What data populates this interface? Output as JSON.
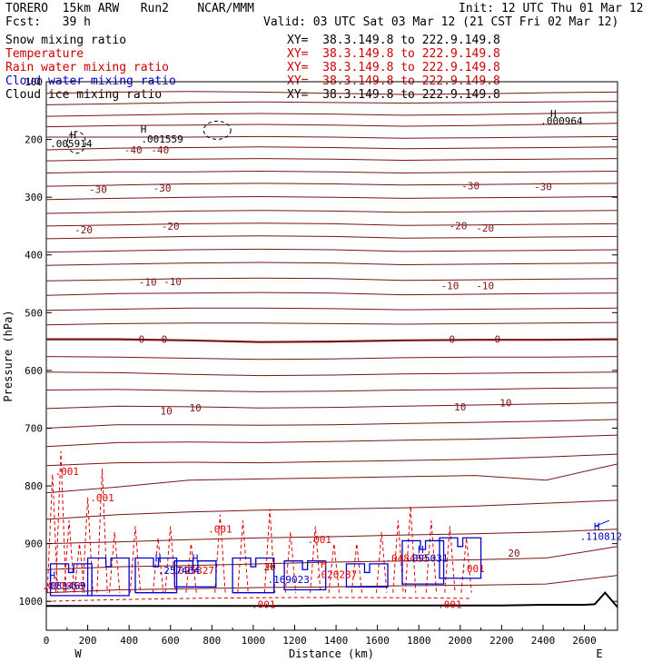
{
  "header": {
    "line1_left": "TORERO  15km ARW   Run2    NCAR/MMM",
    "init": "Init: 12 UTC Thu 01 Mar 12",
    "fcst": "Fcst:   39 h",
    "valid": "Valid: 03 UTC Sat 03 Mar 12 (21 CST Fri 02 Mar 12)"
  },
  "legend": [
    {
      "name": "Snow mixing ratio",
      "xy": "XY=  38.3.149.8 to 222.9.149.8",
      "color": "#000000"
    },
    {
      "name": "Temperature",
      "xy": "XY=  38.3.149.8 to 222.9.149.8",
      "color": "#cc0000"
    },
    {
      "name": "Rain water mixing ratio",
      "xy": "XY=  38.3.149.8 to 222.9.149.8",
      "color": "#cc0000"
    },
    {
      "name": "Cloud water mixing ratio",
      "xy": "XY=  38.3.149.8 to 222.9.149.8",
      "color": "#0000cc"
    },
    {
      "name": "Cloud ice mixing ratio",
      "xy": "XY=  38.3.149.8 to 222.9.149.8",
      "color": "#000000"
    }
  ],
  "colors": {
    "temperature": "#7a1414",
    "temperature_zero": "#7a1414",
    "rain": "#dd0000",
    "cloud_water": "#0000cc",
    "snow": "#000000",
    "terrain": "#000000"
  },
  "chart_data": {
    "type": "contour",
    "xlabel": "Distance (km)",
    "ylabel": "Pressure (hPa)",
    "xlim": [
      0,
      2760
    ],
    "ylim": [
      1050,
      100
    ],
    "x_ticks": [
      0,
      200,
      400,
      600,
      800,
      1000,
      1200,
      1400,
      1600,
      1800,
      2000,
      2200,
      2400,
      2600
    ],
    "y_ticks": [
      100,
      200,
      300,
      400,
      500,
      600,
      700,
      800,
      900,
      1000
    ],
    "x_end_labels": [
      "W",
      "E"
    ],
    "temperature_isotherms": [
      {
        "p": [
          120,
          118,
          117,
          118,
          120,
          122,
          121,
          119,
          118
        ],
        "label": ""
      },
      {
        "p": [
          140,
          138,
          136,
          135,
          136,
          137,
          136,
          135,
          134
        ],
        "label": ""
      },
      {
        "p": [
          160,
          158,
          156,
          155,
          156,
          158,
          157,
          155,
          153
        ],
        "label": ""
      },
      {
        "p": [
          178,
          176,
          175,
          174,
          175,
          177,
          176,
          174,
          172
        ],
        "label": ""
      },
      {
        "p": [
          196,
          196,
          196,
          195,
          196,
          198,
          197,
          196,
          195
        ],
        "label": ""
      },
      {
        "p": [
          218,
          215,
          214,
          213,
          214,
          216,
          215,
          214,
          213
        ],
        "label": "-40"
      },
      {
        "p": [
          237,
          235,
          234,
          233,
          234,
          236,
          235,
          234,
          233
        ],
        "label": ""
      },
      {
        "p": [
          258,
          256,
          256,
          255,
          256,
          258,
          257,
          256,
          255
        ],
        "label": ""
      },
      {
        "p": [
          281,
          279,
          277,
          276,
          277,
          279,
          278,
          277,
          276
        ],
        "label": "-30"
      },
      {
        "p": [
          304,
          302,
          300,
          299,
          300,
          302,
          301,
          300,
          299
        ],
        "label": ""
      },
      {
        "p": [
          328,
          326,
          324,
          323,
          324,
          326,
          325,
          324,
          323
        ],
        "label": ""
      },
      {
        "p": [
          350,
          348,
          346,
          345,
          346,
          349,
          348,
          347,
          346
        ],
        "label": "-20"
      },
      {
        "p": [
          372,
          370,
          368,
          367,
          368,
          371,
          370,
          369,
          368
        ],
        "label": ""
      },
      {
        "p": [
          395,
          393,
          391,
          390,
          391,
          394,
          393,
          392,
          391
        ],
        "label": ""
      },
      {
        "p": [
          418,
          416,
          414,
          413,
          414,
          417,
          416,
          415,
          414
        ],
        "label": ""
      },
      {
        "p": [
          445,
          443,
          441,
          440,
          441,
          444,
          443,
          442,
          441
        ],
        "label": "-10"
      },
      {
        "p": [
          470,
          467,
          466,
          465,
          466,
          469,
          468,
          467,
          466
        ],
        "label": ""
      },
      {
        "p": [
          496,
          494,
          492,
          492,
          493,
          495,
          494,
          493,
          492
        ],
        "label": ""
      },
      {
        "p": [
          521,
          519,
          518,
          518,
          519,
          520,
          519,
          518,
          517
        ],
        "label": ""
      },
      {
        "p": [
          546,
          546,
          548,
          551,
          550,
          548,
          547,
          547,
          546
        ],
        "label": "0",
        "bold": true
      },
      {
        "p": [
          576,
          577,
          579,
          581,
          580,
          578,
          577,
          577,
          576
        ],
        "label": ""
      },
      {
        "p": [
          603,
          604,
          607,
          609,
          608,
          606,
          605,
          604,
          603
        ],
        "label": ""
      },
      {
        "p": [
          634,
          633,
          635,
          637,
          636,
          634,
          633,
          631,
          630
        ],
        "label": ""
      },
      {
        "p": [
          666,
          662,
          663,
          665,
          664,
          662,
          660,
          658,
          656
        ],
        "label": "10"
      },
      {
        "p": [
          700,
          694,
          694,
          695,
          694,
          692,
          690,
          688,
          685
        ],
        "label": ""
      },
      {
        "p": [
          732,
          725,
          724,
          725,
          723,
          721,
          719,
          716,
          712
        ],
        "label": ""
      },
      {
        "p": [
          765,
          760,
          759,
          760,
          758,
          756,
          754,
          750,
          745
        ],
        "label": ""
      },
      {
        "p": [
          812,
          802,
          790,
          788,
          786,
          784,
          782,
          790,
          762
        ],
        "label": ""
      },
      {
        "p": [
          858,
          850,
          845,
          842,
          840,
          838,
          835,
          830,
          825
        ],
        "label": ""
      },
      {
        "p": [
          900,
          897,
          893,
          890,
          888,
          885,
          883,
          880,
          875
        ],
        "label": ""
      },
      {
        "p": [
          945,
          940,
          938,
          935,
          932,
          930,
          928,
          925,
          905
        ],
        "label": "20"
      },
      {
        "p": [
          985,
          980,
          978,
          976,
          975,
          973,
          972,
          970,
          955
        ],
        "label": ""
      }
    ],
    "isotherm_x": [
      0,
      345,
      690,
      1035,
      1380,
      1725,
      2070,
      2415,
      2760
    ],
    "temperature_labels": [
      {
        "x": 420,
        "p": 218,
        "text": "-40"
      },
      {
        "x": 550,
        "p": 218,
        "text": "-40"
      },
      {
        "x": 250,
        "p": 286,
        "text": "-30"
      },
      {
        "x": 560,
        "p": 284,
        "text": "-30"
      },
      {
        "x": 2050,
        "p": 280,
        "text": "-30"
      },
      {
        "x": 2400,
        "p": 282,
        "text": "-30"
      },
      {
        "x": 180,
        "p": 356,
        "text": "-20"
      },
      {
        "x": 600,
        "p": 350,
        "text": "-20"
      },
      {
        "x": 1990,
        "p": 349,
        "text": "-20"
      },
      {
        "x": 2120,
        "p": 353,
        "text": "-20"
      },
      {
        "x": 490,
        "p": 447,
        "text": "-10"
      },
      {
        "x": 610,
        "p": 446,
        "text": "-10"
      },
      {
        "x": 1950,
        "p": 453,
        "text": "-10"
      },
      {
        "x": 2120,
        "p": 453,
        "text": "-10"
      },
      {
        "x": 460,
        "p": 546,
        "text": "0"
      },
      {
        "x": 570,
        "p": 546,
        "text": "0"
      },
      {
        "x": 1960,
        "p": 546,
        "text": "0"
      },
      {
        "x": 2180,
        "p": 546,
        "text": "0"
      },
      {
        "x": 580,
        "p": 670,
        "text": "10"
      },
      {
        "x": 720,
        "p": 665,
        "text": "10"
      },
      {
        "x": 2000,
        "p": 663,
        "text": "10"
      },
      {
        "x": 2220,
        "p": 656,
        "text": "10"
      },
      {
        "x": 2260,
        "p": 916,
        "text": "20"
      },
      {
        "x": 1080,
        "p": 940,
        "text": "20"
      }
    ],
    "rain_labels": [
      {
        "x": 100,
        "p": 775,
        "text": ".001"
      },
      {
        "x": 270,
        "p": 820,
        "text": ".001"
      },
      {
        "x": 840,
        "p": 875,
        "text": ".001"
      },
      {
        "x": 1320,
        "p": 893,
        "text": ".001"
      },
      {
        "x": 2060,
        "p": 943,
        "text": ".001"
      },
      {
        "x": 1050,
        "p": 1005,
        "text": ".001"
      },
      {
        "x": 1950,
        "p": 1005,
        "text": ".001"
      },
      {
        "x": 1400,
        "p": 953,
        "text": ".020287"
      },
      {
        "x": 710,
        "p": 946,
        "text": ".025327"
      },
      {
        "x": 80,
        "p": 973,
        "text": ".021056"
      },
      {
        "x": 1740,
        "p": 925,
        "text": ".048400"
      }
    ],
    "cloud_labels": [
      {
        "x": 90,
        "p": 973,
        "text": ".081469"
      },
      {
        "x": 640,
        "p": 946,
        "text": ".257464"
      },
      {
        "x": 1170,
        "p": 962,
        "text": ".169023"
      },
      {
        "x": 1840,
        "p": 925,
        "text": ".095031"
      },
      {
        "x": 2680,
        "p": 887,
        "text": ".110812"
      }
    ],
    "cloud_markers": [
      {
        "x": 30,
        "p": 955,
        "text": "H"
      },
      {
        "x": 540,
        "p": 925,
        "text": "H"
      },
      {
        "x": 720,
        "p": 925,
        "text": "H"
      },
      {
        "x": 1810,
        "p": 910,
        "text": "H"
      },
      {
        "x": 2660,
        "p": 870,
        "text": "H"
      }
    ],
    "rain_markers": [
      {
        "x": 1080,
        "p": 940,
        "text": "H"
      },
      {
        "x": 1340,
        "p": 935,
        "text": "H"
      }
    ],
    "snow_labels": [
      {
        "x": 120,
        "p": 207,
        "text": ".005914"
      },
      {
        "x": 560,
        "p": 199,
        "text": ".001559"
      },
      {
        "x": 2490,
        "p": 168,
        "text": ".000964"
      }
    ],
    "snow_markers": [
      {
        "x": 130,
        "p": 192,
        "text": "H"
      },
      {
        "x": 470,
        "p": 182,
        "text": "H"
      },
      {
        "x": 2450,
        "p": 155,
        "text": "H"
      }
    ],
    "terrain_p": [
      1008,
      1008,
      1008,
      1008,
      1008,
      1008,
      1008,
      1007,
      1007,
      1007,
      1007,
      1007,
      1006,
      1006,
      1005,
      985,
      1010
    ],
    "terrain_x": [
      0,
      200,
      400,
      600,
      800,
      1000,
      1200,
      1400,
      1600,
      1800,
      2000,
      2200,
      2400,
      2600,
      2650,
      2700,
      2760
    ]
  }
}
